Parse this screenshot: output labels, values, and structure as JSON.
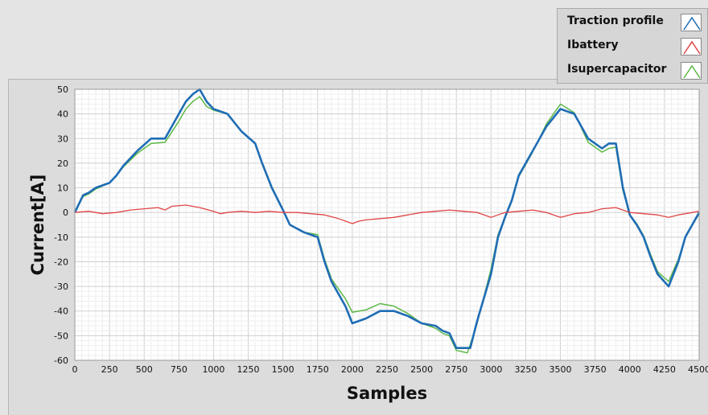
{
  "chart_data": {
    "type": "line",
    "xlabel": "Samples",
    "ylabel": "Current[A]",
    "xlim": [
      0,
      4500
    ],
    "ylim": [
      -60,
      50
    ],
    "xticks": [
      0,
      250,
      500,
      750,
      1000,
      1250,
      1500,
      1750,
      2000,
      2250,
      2500,
      2750,
      3000,
      3250,
      3500,
      3750,
      4000,
      4250,
      4500
    ],
    "yticks": [
      50,
      40,
      30,
      20,
      10,
      0,
      -10,
      -20,
      -30,
      -40,
      -50,
      -60
    ],
    "grid": true,
    "legend_position": "top-right",
    "series": [
      {
        "name": "Traction profile",
        "color": "#1f6db5",
        "points": [
          [
            0,
            0
          ],
          [
            60,
            7
          ],
          [
            100,
            8
          ],
          [
            150,
            10
          ],
          [
            250,
            12
          ],
          [
            300,
            15
          ],
          [
            350,
            19
          ],
          [
            450,
            25
          ],
          [
            550,
            30
          ],
          [
            650,
            30
          ],
          [
            750,
            40
          ],
          [
            800,
            45
          ],
          [
            850,
            48
          ],
          [
            900,
            50
          ],
          [
            950,
            45
          ],
          [
            1000,
            42
          ],
          [
            1100,
            40
          ],
          [
            1200,
            33
          ],
          [
            1300,
            28
          ],
          [
            1350,
            20
          ],
          [
            1420,
            10
          ],
          [
            1500,
            1
          ],
          [
            1550,
            -5
          ],
          [
            1650,
            -8
          ],
          [
            1750,
            -10
          ],
          [
            1800,
            -20
          ],
          [
            1850,
            -28
          ],
          [
            1950,
            -38
          ],
          [
            2000,
            -45
          ],
          [
            2100,
            -43
          ],
          [
            2200,
            -40
          ],
          [
            2300,
            -40
          ],
          [
            2400,
            -42
          ],
          [
            2500,
            -45
          ],
          [
            2600,
            -46
          ],
          [
            2650,
            -48
          ],
          [
            2700,
            -49
          ],
          [
            2750,
            -55
          ],
          [
            2850,
            -55
          ],
          [
            2900,
            -44
          ],
          [
            3000,
            -25
          ],
          [
            3050,
            -10
          ],
          [
            3100,
            -2
          ],
          [
            3150,
            5
          ],
          [
            3200,
            15
          ],
          [
            3300,
            25
          ],
          [
            3400,
            35
          ],
          [
            3500,
            42
          ],
          [
            3600,
            40
          ],
          [
            3700,
            30
          ],
          [
            3800,
            26
          ],
          [
            3850,
            28
          ],
          [
            3900,
            28
          ],
          [
            3950,
            10
          ],
          [
            4000,
            -1
          ],
          [
            4050,
            -5
          ],
          [
            4100,
            -10
          ],
          [
            4150,
            -18
          ],
          [
            4200,
            -25
          ],
          [
            4280,
            -30
          ],
          [
            4350,
            -20
          ],
          [
            4400,
            -10
          ],
          [
            4500,
            0
          ]
        ]
      },
      {
        "name": "Ibattery",
        "color": "#e04545",
        "points": [
          [
            0,
            0
          ],
          [
            100,
            0.5
          ],
          [
            200,
            -0.5
          ],
          [
            300,
            0
          ],
          [
            400,
            1
          ],
          [
            500,
            1.5
          ],
          [
            600,
            2
          ],
          [
            650,
            1
          ],
          [
            700,
            2.5
          ],
          [
            800,
            3
          ],
          [
            900,
            2
          ],
          [
            1000,
            0.5
          ],
          [
            1050,
            -0.5
          ],
          [
            1100,
            0
          ],
          [
            1200,
            0.5
          ],
          [
            1300,
            0
          ],
          [
            1400,
            0.5
          ],
          [
            1500,
            0
          ],
          [
            1600,
            0
          ],
          [
            1700,
            -0.5
          ],
          [
            1800,
            -1
          ],
          [
            1900,
            -2.5
          ],
          [
            2000,
            -4.5
          ],
          [
            2050,
            -3.5
          ],
          [
            2100,
            -3
          ],
          [
            2200,
            -2.5
          ],
          [
            2300,
            -2
          ],
          [
            2400,
            -1
          ],
          [
            2500,
            0
          ],
          [
            2600,
            0.5
          ],
          [
            2700,
            1
          ],
          [
            2800,
            0.5
          ],
          [
            2900,
            0
          ],
          [
            3000,
            -2
          ],
          [
            3050,
            -1
          ],
          [
            3100,
            0
          ],
          [
            3200,
            0.5
          ],
          [
            3300,
            1
          ],
          [
            3400,
            0
          ],
          [
            3500,
            -2
          ],
          [
            3600,
            -0.5
          ],
          [
            3700,
            0
          ],
          [
            3800,
            1.5
          ],
          [
            3900,
            2
          ],
          [
            3950,
            1
          ],
          [
            4000,
            0
          ],
          [
            4100,
            -0.5
          ],
          [
            4200,
            -1
          ],
          [
            4280,
            -2
          ],
          [
            4350,
            -1
          ],
          [
            4450,
            0
          ],
          [
            4500,
            0.5
          ]
        ]
      },
      {
        "name": "Isupercapacitor",
        "color": "#5db845",
        "points": [
          [
            0,
            0
          ],
          [
            60,
            6.5
          ],
          [
            100,
            7.5
          ],
          [
            150,
            9.5
          ],
          [
            250,
            12
          ],
          [
            300,
            15
          ],
          [
            350,
            18.5
          ],
          [
            450,
            24
          ],
          [
            550,
            28
          ],
          [
            650,
            28.5
          ],
          [
            750,
            37
          ],
          [
            800,
            42
          ],
          [
            850,
            45
          ],
          [
            900,
            47
          ],
          [
            950,
            43
          ],
          [
            1000,
            41.5
          ],
          [
            1100,
            40
          ],
          [
            1200,
            33
          ],
          [
            1300,
            28
          ],
          [
            1350,
            20
          ],
          [
            1420,
            10
          ],
          [
            1500,
            1
          ],
          [
            1550,
            -5
          ],
          [
            1650,
            -8
          ],
          [
            1750,
            -9
          ],
          [
            1800,
            -19
          ],
          [
            1850,
            -27
          ],
          [
            1950,
            -35
          ],
          [
            2000,
            -40.5
          ],
          [
            2100,
            -39.5
          ],
          [
            2200,
            -37
          ],
          [
            2300,
            -38
          ],
          [
            2400,
            -41
          ],
          [
            2500,
            -45
          ],
          [
            2600,
            -47
          ],
          [
            2650,
            -49
          ],
          [
            2700,
            -50
          ],
          [
            2750,
            -56
          ],
          [
            2830,
            -57
          ],
          [
            2900,
            -45
          ],
          [
            3000,
            -23
          ],
          [
            3050,
            -9
          ],
          [
            3100,
            -2
          ],
          [
            3150,
            4.5
          ],
          [
            3200,
            14.5
          ],
          [
            3300,
            24.5
          ],
          [
            3400,
            36
          ],
          [
            3500,
            44
          ],
          [
            3600,
            40.5
          ],
          [
            3700,
            28.5
          ],
          [
            3800,
            24.5
          ],
          [
            3850,
            26
          ],
          [
            3900,
            26.5
          ],
          [
            3950,
            9
          ],
          [
            4000,
            -1
          ],
          [
            4050,
            -4.5
          ],
          [
            4100,
            -9.5
          ],
          [
            4150,
            -17
          ],
          [
            4200,
            -24
          ],
          [
            4280,
            -28
          ],
          [
            4350,
            -19
          ],
          [
            4400,
            -10
          ],
          [
            4500,
            -0.5
          ]
        ]
      }
    ]
  }
}
